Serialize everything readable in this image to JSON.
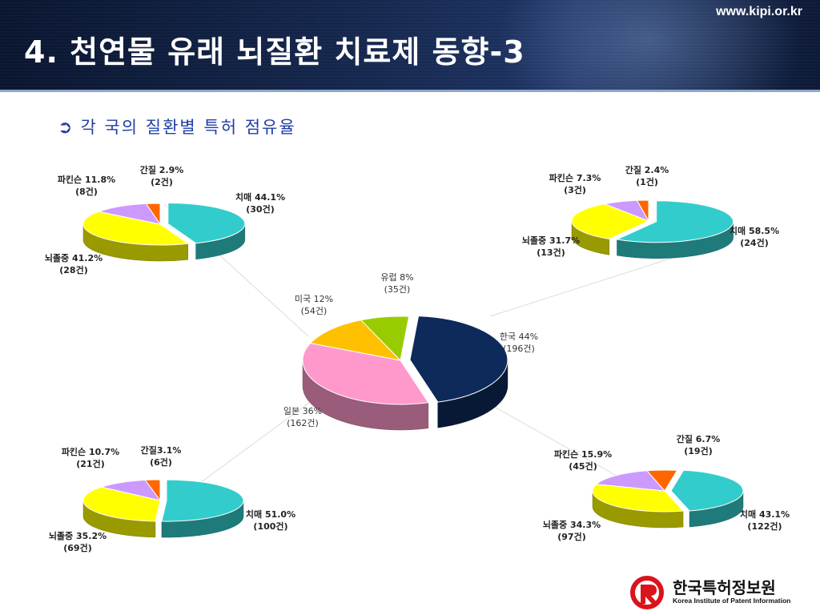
{
  "header": {
    "url": "www.kipi.or.kr",
    "title": "4. 천연물 유래 뇌질환 치료제 동향-3"
  },
  "subtitle": "각 국의 질환별 특허 점유율",
  "logo": {
    "name_kr": "한국특허정보원",
    "name_en": "Korea Institute of Patent Information",
    "color": "#d9141c"
  },
  "chart_data": [
    {
      "type": "pie",
      "role": "center",
      "slices": [
        {
          "label": "한국 44%",
          "count": "(196건)",
          "value": 44,
          "color": "#0d2a5a"
        },
        {
          "label": "일본 36%",
          "count": "(162건)",
          "value": 36,
          "color": "#ff99cc"
        },
        {
          "label": "미국 12%",
          "count": "(54건)",
          "value": 12,
          "color": "#ffc000"
        },
        {
          "label": "유럽 8%",
          "count": "(35건)",
          "value": 8,
          "color": "#99cc00"
        }
      ]
    },
    {
      "type": "pie",
      "role": "top-left",
      "slices": [
        {
          "label": "치매 44.1%",
          "count": "(30건)",
          "value": 44.1,
          "color": "#33cccc"
        },
        {
          "label": "뇌졸중 41.2%",
          "count": "(28건)",
          "value": 41.2,
          "color": "#ffff00"
        },
        {
          "label": "파킨슨 11.8%",
          "count": "(8건)",
          "value": 11.8,
          "color": "#cc99ff"
        },
        {
          "label": "간질 2.9%",
          "count": "(2건)",
          "value": 2.9,
          "color": "#ff6600"
        }
      ]
    },
    {
      "type": "pie",
      "role": "top-right",
      "slices": [
        {
          "label": "치매 58.5%",
          "count": "(24건)",
          "value": 58.5,
          "color": "#33cccc"
        },
        {
          "label": "뇌졸중 31.7%",
          "count": "(13건)",
          "value": 31.7,
          "color": "#ffff00"
        },
        {
          "label": "파킨슨 7.3%",
          "count": "(3건)",
          "value": 7.3,
          "color": "#cc99ff"
        },
        {
          "label": "간질 2.4%",
          "count": "(1건)",
          "value": 2.4,
          "color": "#ff6600"
        }
      ]
    },
    {
      "type": "pie",
      "role": "bottom-left",
      "slices": [
        {
          "label": "치매 51.0%",
          "count": "(100건)",
          "value": 51.0,
          "color": "#33cccc"
        },
        {
          "label": "뇌졸중 35.2%",
          "count": "(69건)",
          "value": 35.2,
          "color": "#ffff00"
        },
        {
          "label": "파킨슨 10.7%",
          "count": "(21건)",
          "value": 10.7,
          "color": "#cc99ff"
        },
        {
          "label": "간질3.1%",
          "count": "(6건)",
          "value": 3.1,
          "color": "#ff6600"
        }
      ]
    },
    {
      "type": "pie",
      "role": "bottom-right",
      "slices": [
        {
          "label": "치매 43.1%",
          "count": "(122건)",
          "value": 43.1,
          "color": "#33cccc"
        },
        {
          "label": "뇌졸중 34.3%",
          "count": "(97건)",
          "value": 34.3,
          "color": "#ffff00"
        },
        {
          "label": "파킨슨 15.9%",
          "count": "(45건)",
          "value": 15.9,
          "color": "#cc99ff"
        },
        {
          "label": "간질 6.7%",
          "count": "(19건)",
          "value": 6.7,
          "color": "#ff6600"
        }
      ]
    }
  ]
}
